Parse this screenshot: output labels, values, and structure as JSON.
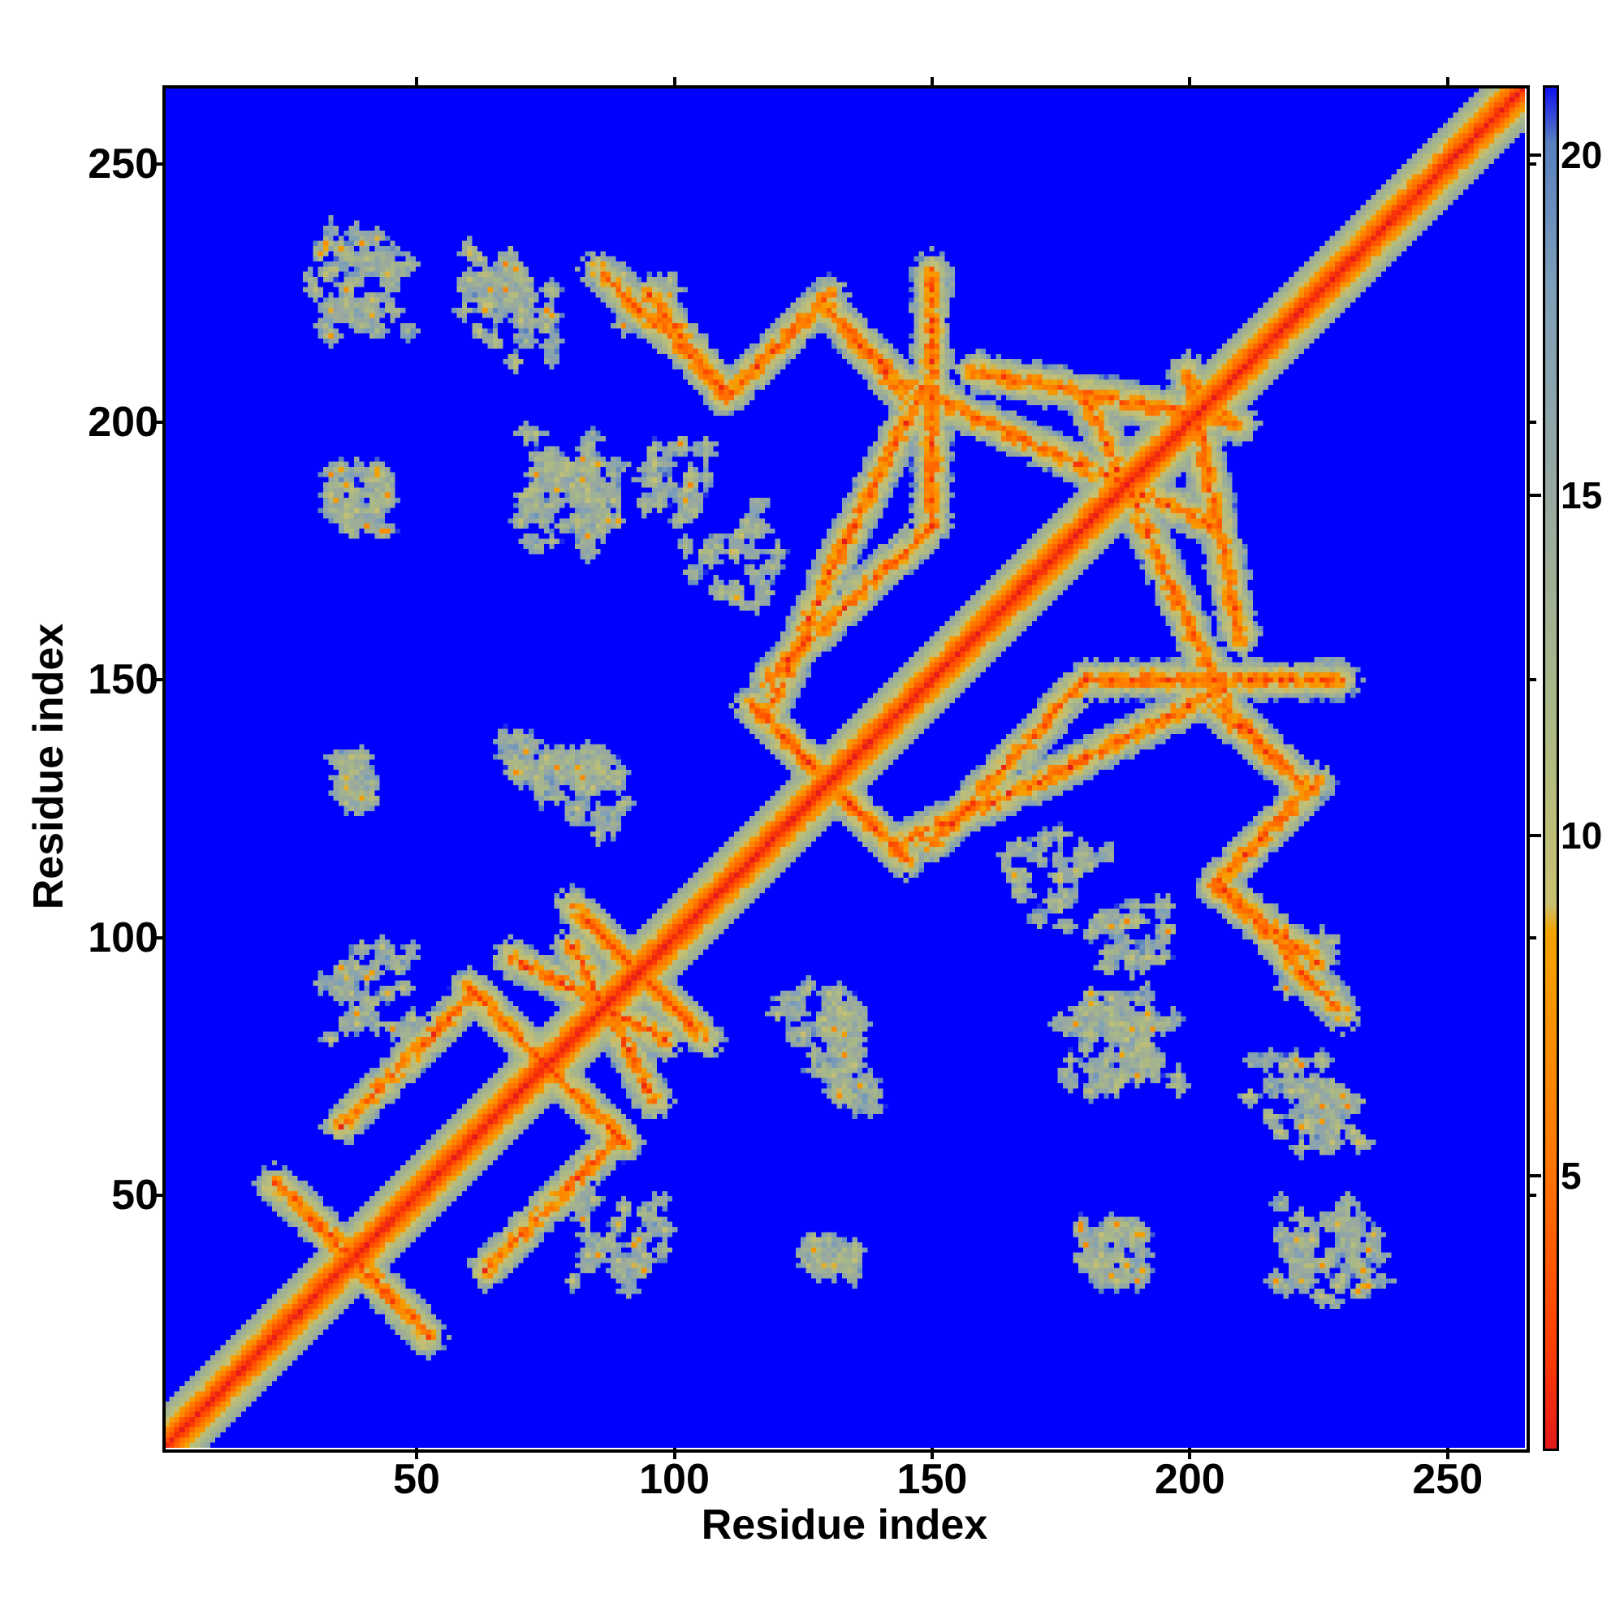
{
  "chart_data": {
    "type": "heatmap",
    "title": "",
    "xlabel": "Residue index",
    "ylabel": "Residue index",
    "xlim": [
      1,
      265
    ],
    "ylim": [
      1,
      265
    ],
    "x_ticks": [
      "50",
      "100",
      "150",
      "200",
      "250"
    ],
    "y_ticks": [
      "50",
      "100",
      "150",
      "200",
      "250"
    ],
    "colorbar": {
      "ticks": [
        "5",
        "10",
        "15",
        "20"
      ],
      "range": [
        1,
        21
      ],
      "colors": [
        "#e41a1c",
        "#ff7a00",
        "#f4a300",
        "#a8b888",
        "#7fa0b8",
        "#0000ff"
      ]
    },
    "background_value": 21,
    "diagonal_band_width": 8,
    "contact_features": [
      {
        "kind": "antiparallel",
        "from": [
          22,
          52
        ],
        "to": [
          50,
          25
        ]
      },
      {
        "kind": "parallel",
        "from": [
          35,
          63
        ],
        "to": [
          60,
          88
        ]
      },
      {
        "kind": "antiparallel",
        "from": [
          68,
          96
        ],
        "to": [
          98,
          80
        ]
      },
      {
        "kind": "antiparallel",
        "from": [
          60,
          90
        ],
        "to": [
          90,
          60
        ]
      },
      {
        "kind": "antiparallel",
        "from": [
          82,
          104
        ],
        "to": [
          106,
          80
        ]
      },
      {
        "kind": "antiparallel",
        "from": [
          115,
          145
        ],
        "to": [
          145,
          115
        ]
      },
      {
        "kind": "parallel",
        "from": [
          118,
          150
        ],
        "to": [
          150,
          180
        ]
      },
      {
        "kind": "antiparallel",
        "from": [
          95,
          225
        ],
        "to": [
          110,
          205
        ]
      },
      {
        "kind": "parallel",
        "from": [
          110,
          205
        ],
        "to": [
          130,
          225
        ]
      },
      {
        "kind": "antiparallel",
        "from": [
          130,
          222
        ],
        "to": [
          145,
          205
        ]
      },
      {
        "kind": "parallel",
        "from": [
          150,
          205
        ],
        "to": [
          205,
          180
        ]
      },
      {
        "kind": "antiparallel",
        "from": [
          143,
          118
        ],
        "to": [
          175,
          132
        ]
      },
      {
        "kind": "parallel",
        "from": [
          175,
          132
        ],
        "to": [
          207,
          148
        ]
      },
      {
        "kind": "antiparallel",
        "from": [
          207,
          145
        ],
        "to": [
          222,
          130
        ]
      },
      {
        "kind": "antiparallel",
        "from": [
          208,
          108
        ],
        "to": [
          230,
          85
        ]
      },
      {
        "kind": "parallel",
        "from": [
          158,
          210
        ],
        "to": [
          210,
          200
        ]
      },
      {
        "kind": "parallel",
        "from": [
          150,
          180
        ],
        "to": [
          150,
          230
        ]
      }
    ],
    "contact_blobs": [
      {
        "center": [
          37,
          230
        ],
        "size": 10
      },
      {
        "center": [
          37,
          184
        ],
        "size": 6
      },
      {
        "center": [
          65,
          228
        ],
        "size": 8
      },
      {
        "center": [
          80,
          190
        ],
        "size": 12
      },
      {
        "center": [
          100,
          190
        ],
        "size": 8
      },
      {
        "center": [
          37,
          132
        ],
        "size": 4
      },
      {
        "center": [
          70,
          135
        ],
        "size": 6
      },
      {
        "center": [
          82,
          132
        ],
        "size": 6
      },
      {
        "center": [
          128,
          82
        ],
        "size": 10
      },
      {
        "center": [
          90,
          40
        ],
        "size": 12
      },
      {
        "center": [
          175,
          110
        ],
        "size": 12
      },
      {
        "center": [
          185,
          80
        ],
        "size": 12
      },
      {
        "center": [
          185,
          38
        ],
        "size": 8
      },
      {
        "center": [
          225,
          40
        ],
        "size": 10
      },
      {
        "center": [
          128,
          38
        ],
        "size": 4
      },
      {
        "center": [
          220,
          70
        ],
        "size": 10
      },
      {
        "center": [
          225,
          95
        ],
        "size": 8
      }
    ]
  }
}
